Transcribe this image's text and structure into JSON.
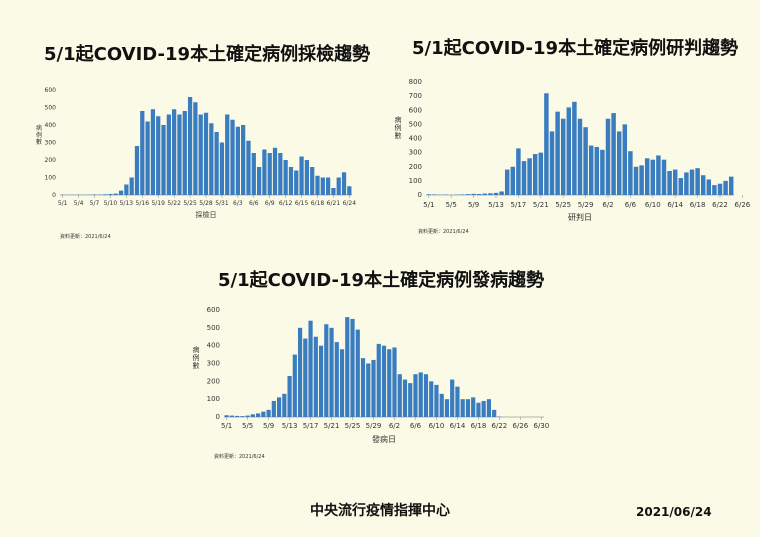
{
  "charts": [
    {
      "id": "sampling",
      "title": "5/1起COVID-19本土確定病例採檢趨勢",
      "xlabel": "採檢日",
      "ylabel": "病例數",
      "updated": "資料更新：2021/6/24",
      "color": "#3a7cc0"
    },
    {
      "id": "diagnosis",
      "title": "5/1起COVID-19本土確定病例研判趨勢",
      "xlabel": "研判日",
      "ylabel": "病例數",
      "updated": "資料更新：2021/6/24",
      "color": "#3a7cc0"
    },
    {
      "id": "onset",
      "title": "5/1起COVID-19本土確定病例發病趨勢",
      "xlabel": "發病日",
      "ylabel": "病例數",
      "updated": "資料更新：2021/6/24",
      "color": "#3a7cc0"
    }
  ],
  "footer": {
    "org": "中央流行疫情指揮中心",
    "date": "2021/06/24"
  },
  "chart_data": [
    {
      "type": "bar",
      "title": "5/1起COVID-19本土確定病例採檢趨勢",
      "xlabel": "採檢日",
      "ylabel": "病例數",
      "ylim": [
        0,
        600
      ],
      "yticks": [
        0,
        100,
        200,
        300,
        400,
        500,
        600
      ],
      "tick_labels": [
        "5/1",
        "5/4",
        "5/7",
        "5/10",
        "5/13",
        "5/16",
        "5/19",
        "5/22",
        "5/25",
        "5/28",
        "5/31",
        "6/3",
        "6/6",
        "6/9",
        "6/12",
        "6/15",
        "6/18",
        "6/21",
        "6/24"
      ],
      "tick_step": 3,
      "categories": [
        "5/1",
        "5/2",
        "5/3",
        "5/4",
        "5/5",
        "5/6",
        "5/7",
        "5/8",
        "5/9",
        "5/10",
        "5/11",
        "5/12",
        "5/13",
        "5/14",
        "5/15",
        "5/16",
        "5/17",
        "5/18",
        "5/19",
        "5/20",
        "5/21",
        "5/22",
        "5/23",
        "5/24",
        "5/25",
        "5/26",
        "5/27",
        "5/28",
        "5/29",
        "5/30",
        "5/31",
        "6/1",
        "6/2",
        "6/3",
        "6/4",
        "6/5",
        "6/6",
        "6/7",
        "6/8",
        "6/9",
        "6/10",
        "6/11",
        "6/12",
        "6/13",
        "6/14",
        "6/15",
        "6/16",
        "6/17",
        "6/18",
        "6/19",
        "6/20",
        "6/21",
        "6/22",
        "6/23",
        "6/24"
      ],
      "values": [
        2,
        1,
        1,
        2,
        1,
        2,
        3,
        2,
        4,
        6,
        8,
        25,
        60,
        100,
        280,
        480,
        420,
        490,
        450,
        400,
        460,
        490,
        460,
        480,
        560,
        530,
        460,
        470,
        410,
        360,
        300,
        460,
        430,
        390,
        400,
        310,
        240,
        160,
        260,
        240,
        270,
        240,
        200,
        160,
        140,
        220,
        200,
        160,
        110,
        100,
        100,
        40,
        100,
        130,
        50
      ]
    },
    {
      "type": "bar",
      "title": "5/1起COVID-19本土確定病例研判趨勢",
      "xlabel": "研判日",
      "ylabel": "病例數",
      "ylim": [
        0,
        800
      ],
      "yticks": [
        0,
        100,
        200,
        300,
        400,
        500,
        600,
        700,
        800
      ],
      "tick_labels": [
        "5/1",
        "5/5",
        "5/9",
        "5/13",
        "5/17",
        "5/21",
        "5/25",
        "5/29",
        "6/2",
        "6/6",
        "6/10",
        "6/14",
        "6/18",
        "6/22",
        "6/26"
      ],
      "tick_step": 4,
      "categories": [
        "5/1",
        "5/2",
        "5/3",
        "5/4",
        "5/5",
        "5/6",
        "5/7",
        "5/8",
        "5/9",
        "5/10",
        "5/11",
        "5/12",
        "5/13",
        "5/14",
        "5/15",
        "5/16",
        "5/17",
        "5/18",
        "5/19",
        "5/20",
        "5/21",
        "5/22",
        "5/23",
        "5/24",
        "5/25",
        "5/26",
        "5/27",
        "5/28",
        "5/29",
        "5/30",
        "5/31",
        "6/1",
        "6/2",
        "6/3",
        "6/4",
        "6/5",
        "6/6",
        "6/7",
        "6/8",
        "6/9",
        "6/10",
        "6/11",
        "6/12",
        "6/13",
        "6/14",
        "6/15",
        "6/16",
        "6/17",
        "6/18",
        "6/19",
        "6/20",
        "6/21",
        "6/22",
        "6/23",
        "6/24"
      ],
      "values": [
        5,
        4,
        2,
        3,
        1,
        3,
        4,
        6,
        8,
        7,
        10,
        12,
        15,
        25,
        180,
        200,
        330,
        240,
        260,
        290,
        300,
        720,
        450,
        590,
        540,
        620,
        660,
        540,
        480,
        350,
        340,
        320,
        540,
        580,
        450,
        500,
        310,
        200,
        210,
        260,
        250,
        280,
        250,
        170,
        180,
        120,
        160,
        180,
        190,
        140,
        110,
        70,
        80,
        100,
        130
      ]
    },
    {
      "type": "bar",
      "title": "5/1起COVID-19本土確定病例發病趨勢",
      "xlabel": "發病日",
      "ylabel": "病例數",
      "ylim": [
        0,
        600
      ],
      "yticks": [
        0,
        100,
        200,
        300,
        400,
        500,
        600
      ],
      "tick_labels": [
        "5/1",
        "5/5",
        "5/9",
        "5/13",
        "5/17",
        "5/21",
        "5/25",
        "5/29",
        "6/2",
        "6/6",
        "6/10",
        "6/14",
        "6/18",
        "6/22",
        "6/26",
        "6/30"
      ],
      "tick_step": 4,
      "categories": [
        "5/1",
        "5/2",
        "5/3",
        "5/4",
        "5/5",
        "5/6",
        "5/7",
        "5/8",
        "5/9",
        "5/10",
        "5/11",
        "5/12",
        "5/13",
        "5/14",
        "5/15",
        "5/16",
        "5/17",
        "5/18",
        "5/19",
        "5/20",
        "5/21",
        "5/22",
        "5/23",
        "5/24",
        "5/25",
        "5/26",
        "5/27",
        "5/28",
        "5/29",
        "5/30",
        "5/31",
        "6/1",
        "6/2",
        "6/3",
        "6/4",
        "6/5",
        "6/6",
        "6/7",
        "6/8",
        "6/9",
        "6/10",
        "6/11",
        "6/12",
        "6/13",
        "6/14",
        "6/15",
        "6/16",
        "6/17",
        "6/18",
        "6/19",
        "6/20",
        "6/21",
        "6/22",
        "6/23",
        "6/24",
        "6/25",
        "6/26",
        "6/27",
        "6/28",
        "6/29",
        "6/30"
      ],
      "values": [
        10,
        8,
        6,
        5,
        8,
        15,
        20,
        30,
        40,
        90,
        110,
        130,
        230,
        350,
        500,
        440,
        540,
        450,
        400,
        520,
        500,
        420,
        380,
        560,
        550,
        490,
        330,
        300,
        320,
        410,
        400,
        380,
        390,
        240,
        210,
        190,
        240,
        250,
        240,
        200,
        180,
        130,
        100,
        210,
        170,
        100,
        100,
        110,
        80,
        90,
        100,
        40,
        2,
        0,
        0,
        0,
        0,
        0,
        0,
        0,
        0
      ]
    }
  ]
}
